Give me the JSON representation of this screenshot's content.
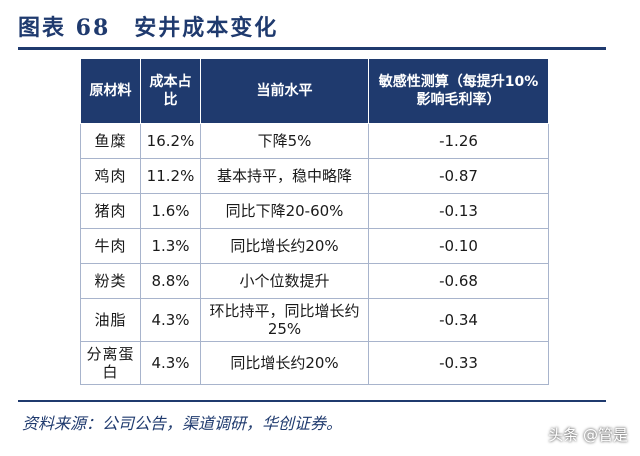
{
  "title": "图表 68　安井成本变化",
  "table": {
    "headers": {
      "material": "原材料",
      "share": "成本占比",
      "level": "当前水平",
      "sensitivity": "敏感性测算（每提升10%影响毛利率）"
    },
    "rows": [
      {
        "material": "鱼糜",
        "share": "16.2%",
        "level": "下降5%",
        "sensitivity": "-1.26"
      },
      {
        "material": "鸡肉",
        "share": "11.2%",
        "level": "基本持平，稳中略降",
        "sensitivity": "-0.87"
      },
      {
        "material": "猪肉",
        "share": "1.6%",
        "level": "同比下降20-60%",
        "sensitivity": "-0.13"
      },
      {
        "material": "牛肉",
        "share": "1.3%",
        "level": "同比增长约20%",
        "sensitivity": "-0.10"
      },
      {
        "material": "粉类",
        "share": "8.8%",
        "level": "小个位数提升",
        "sensitivity": "-0.68"
      },
      {
        "material": "油脂",
        "share": "4.3%",
        "level": "环比持平，同比增长约25%",
        "sensitivity": "-0.34"
      },
      {
        "material": "分离蛋白",
        "share": "4.3%",
        "level": "同比增长约20%",
        "sensitivity": "-0.33"
      }
    ]
  },
  "source": "资料来源：公司公告，渠道调研，华创证券。",
  "watermark": "头条 @管是"
}
